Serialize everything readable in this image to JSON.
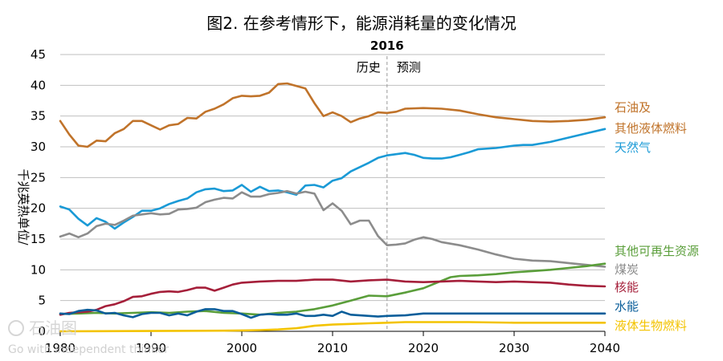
{
  "watermark": {
    "brand": "石油图",
    "tagline": "Go with independent thinker"
  },
  "colors": {
    "oil": "#C0732A",
    "natural_gas": "#1A9AD6",
    "coal": "#8C8C8C",
    "other_renewables": "#5A9E3A",
    "nuclear": "#A51F3A",
    "hydro": "#0A5E9A",
    "liquid_biofuels": "#F3C300"
  },
  "chart_data": {
    "type": "line",
    "title": "图2. 在参考情形下，能源消耗量的变化情况",
    "ylabel": "千兆英热单位/",
    "xlim": [
      1980,
      2040
    ],
    "ylim": [
      0,
      45
    ],
    "xticks": [
      1980,
      1990,
      2000,
      2010,
      2020,
      2030,
      2040
    ],
    "yticks": [
      0,
      5,
      10,
      15,
      20,
      25,
      30,
      35,
      40,
      45
    ],
    "grid": "horizontal",
    "divider": {
      "x": 2016,
      "label": "2016",
      "left_label": "历史",
      "right_label": "预测"
    },
    "series": [
      {
        "key": "oil",
        "label_lines": [
          "石油及",
          "其他液体燃料"
        ],
        "x": [
          1980,
          1981,
          1982,
          1983,
          1984,
          1985,
          1986,
          1987,
          1988,
          1989,
          1990,
          1991,
          1992,
          1993,
          1994,
          1995,
          1996,
          1997,
          1998,
          1999,
          2000,
          2001,
          2002,
          2003,
          2004,
          2005,
          2006,
          2007,
          2008,
          2009,
          2010,
          2011,
          2012,
          2013,
          2014,
          2015,
          2016,
          2017,
          2018,
          2020,
          2022,
          2024,
          2026,
          2028,
          2030,
          2032,
          2034,
          2036,
          2038,
          2040
        ],
        "values": [
          34.2,
          32.0,
          30.2,
          30.0,
          31.0,
          30.9,
          32.2,
          32.9,
          34.2,
          34.2,
          33.5,
          32.8,
          33.5,
          33.7,
          34.7,
          34.6,
          35.7,
          36.2,
          36.9,
          37.9,
          38.3,
          38.2,
          38.3,
          38.8,
          40.2,
          40.3,
          39.9,
          39.5,
          37.1,
          35.0,
          35.6,
          35.0,
          34.0,
          34.6,
          35.0,
          35.6,
          35.5,
          35.7,
          36.2,
          36.3,
          36.2,
          35.9,
          35.3,
          34.8,
          34.5,
          34.2,
          34.1,
          34.2,
          34.4,
          34.8
        ]
      },
      {
        "key": "natural_gas",
        "label_lines": [
          "天然气"
        ],
        "x": [
          1980,
          1981,
          1982,
          1983,
          1984,
          1985,
          1986,
          1987,
          1988,
          1989,
          1990,
          1991,
          1992,
          1993,
          1994,
          1995,
          1996,
          1997,
          1998,
          1999,
          2000,
          2001,
          2002,
          2003,
          2004,
          2005,
          2006,
          2007,
          2008,
          2009,
          2010,
          2011,
          2012,
          2013,
          2014,
          2015,
          2016,
          2017,
          2018,
          2019,
          2020,
          2021,
          2022,
          2023,
          2024,
          2025,
          2026,
          2028,
          2030,
          2031,
          2032,
          2034,
          2036,
          2038,
          2040
        ],
        "values": [
          20.3,
          19.8,
          18.3,
          17.2,
          18.4,
          17.8,
          16.7,
          17.7,
          18.6,
          19.6,
          19.6,
          20.0,
          20.7,
          21.2,
          21.6,
          22.6,
          23.1,
          23.2,
          22.8,
          22.9,
          23.8,
          22.7,
          23.5,
          22.8,
          22.9,
          22.6,
          22.2,
          23.7,
          23.8,
          23.4,
          24.5,
          24.9,
          26.0,
          26.7,
          27.4,
          28.2,
          28.6,
          28.8,
          29.0,
          28.7,
          28.2,
          28.1,
          28.1,
          28.3,
          28.7,
          29.1,
          29.6,
          29.8,
          30.2,
          30.3,
          30.3,
          30.8,
          31.5,
          32.2,
          32.9
        ]
      },
      {
        "key": "coal",
        "label_lines": [
          "煤炭"
        ],
        "x": [
          1980,
          1981,
          1982,
          1983,
          1984,
          1985,
          1986,
          1987,
          1988,
          1989,
          1990,
          1991,
          1992,
          1993,
          1994,
          1995,
          1996,
          1997,
          1998,
          1999,
          2000,
          2001,
          2002,
          2003,
          2004,
          2005,
          2006,
          2007,
          2008,
          2009,
          2010,
          2011,
          2012,
          2013,
          2014,
          2015,
          2016,
          2017,
          2018,
          2019,
          2020,
          2021,
          2022,
          2024,
          2026,
          2028,
          2030,
          2032,
          2034,
          2036,
          2038,
          2040
        ],
        "values": [
          15.4,
          15.9,
          15.3,
          15.9,
          17.1,
          17.5,
          17.3,
          18.0,
          18.8,
          19.0,
          19.2,
          19.0,
          19.1,
          19.8,
          19.9,
          20.1,
          21.0,
          21.4,
          21.7,
          21.6,
          22.6,
          21.9,
          21.9,
          22.3,
          22.5,
          22.8,
          22.4,
          22.7,
          22.4,
          19.7,
          20.8,
          19.6,
          17.4,
          18.0,
          18.0,
          15.5,
          14.0,
          14.1,
          14.3,
          14.9,
          15.3,
          15.0,
          14.5,
          14.0,
          13.3,
          12.5,
          11.8,
          11.5,
          11.4,
          11.1,
          10.8,
          10.5
        ]
      },
      {
        "key": "other_renewables",
        "label_lines": [
          "其他可再生资源"
        ],
        "x": [
          1980,
          1982,
          1984,
          1986,
          1988,
          1990,
          1992,
          1994,
          1996,
          1998,
          2000,
          2002,
          2004,
          2006,
          2007,
          2008,
          2010,
          2012,
          2014,
          2016,
          2018,
          2020,
          2021,
          2022,
          2023,
          2024,
          2026,
          2028,
          2030,
          2032,
          2034,
          2036,
          2038,
          2040
        ],
        "values": [
          2.8,
          2.9,
          3.0,
          2.9,
          3.0,
          3.1,
          3.0,
          3.2,
          3.3,
          3.0,
          2.9,
          2.7,
          3.0,
          3.2,
          3.4,
          3.6,
          4.2,
          5.0,
          5.8,
          5.7,
          6.3,
          7.0,
          7.6,
          8.2,
          8.8,
          9.0,
          9.1,
          9.3,
          9.6,
          9.8,
          10.0,
          10.3,
          10.6,
          11.0
        ]
      },
      {
        "key": "nuclear",
        "label_lines": [
          "核能"
        ],
        "x": [
          1980,
          1981,
          1982,
          1983,
          1984,
          1985,
          1986,
          1987,
          1988,
          1989,
          1990,
          1991,
          1992,
          1993,
          1994,
          1995,
          1996,
          1997,
          1998,
          1999,
          2000,
          2002,
          2004,
          2006,
          2008,
          2010,
          2012,
          2014,
          2016,
          2018,
          2020,
          2022,
          2024,
          2026,
          2028,
          2030,
          2032,
          2034,
          2036,
          2038,
          2040
        ],
        "values": [
          2.7,
          3.0,
          3.1,
          3.2,
          3.5,
          4.1,
          4.4,
          4.9,
          5.6,
          5.7,
          6.1,
          6.4,
          6.5,
          6.4,
          6.7,
          7.1,
          7.1,
          6.6,
          7.1,
          7.6,
          7.9,
          8.1,
          8.2,
          8.2,
          8.4,
          8.4,
          8.1,
          8.3,
          8.4,
          8.1,
          8.0,
          8.1,
          8.2,
          8.1,
          8.0,
          8.1,
          8.0,
          7.9,
          7.6,
          7.4,
          7.3
        ]
      },
      {
        "key": "hydro",
        "label_lines": [
          "水能"
        ],
        "x": [
          1980,
          1981,
          1982,
          1983,
          1984,
          1985,
          1986,
          1987,
          1988,
          1989,
          1990,
          1991,
          1992,
          1993,
          1994,
          1995,
          1996,
          1997,
          1998,
          1999,
          2000,
          2001,
          2002,
          2003,
          2004,
          2005,
          2006,
          2007,
          2008,
          2009,
          2010,
          2011,
          2012,
          2013,
          2014,
          2015,
          2016,
          2018,
          2020,
          2024,
          2028,
          2032,
          2036,
          2040
        ],
        "values": [
          2.9,
          2.8,
          3.3,
          3.5,
          3.4,
          2.9,
          3.0,
          2.6,
          2.3,
          2.8,
          3.0,
          3.0,
          2.6,
          2.9,
          2.6,
          3.2,
          3.6,
          3.6,
          3.3,
          3.3,
          2.8,
          2.2,
          2.7,
          2.8,
          2.7,
          2.7,
          2.9,
          2.5,
          2.5,
          2.7,
          2.5,
          3.2,
          2.7,
          2.6,
          2.5,
          2.4,
          2.5,
          2.6,
          2.9,
          2.9,
          2.9,
          2.9,
          2.9,
          2.9
        ]
      },
      {
        "key": "liquid_biofuels",
        "label_lines": [
          "液体生物燃料"
        ],
        "x": [
          1980,
          1990,
          1998,
          2000,
          2002,
          2004,
          2006,
          2008,
          2010,
          2012,
          2014,
          2016,
          2018,
          2020,
          2025,
          2030,
          2035,
          2040
        ],
        "values": [
          0.0,
          0.05,
          0.1,
          0.15,
          0.2,
          0.3,
          0.5,
          0.9,
          1.1,
          1.2,
          1.3,
          1.4,
          1.5,
          1.5,
          1.5,
          1.4,
          1.4,
          1.4
        ]
      }
    ]
  }
}
